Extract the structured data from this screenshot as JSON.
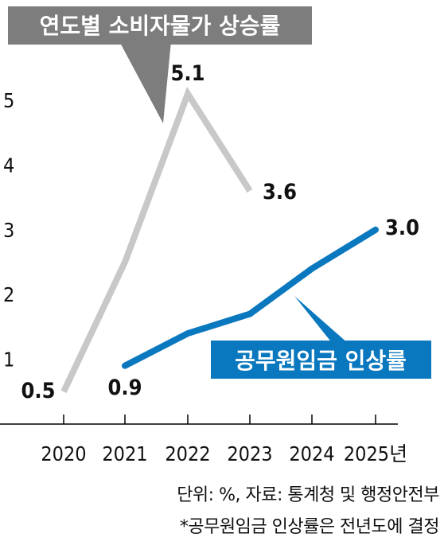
{
  "chart_data": {
    "type": "line",
    "title": "연도별 소비자물가 상승률",
    "xlabel": "",
    "ylabel": "",
    "x": [
      "2020",
      "2021",
      "2022",
      "2023",
      "2024",
      "2025년"
    ],
    "y_ticks": [
      "1",
      "2",
      "3",
      "4",
      "5"
    ],
    "ylim": [
      0,
      5.6
    ],
    "grid": false,
    "series": [
      {
        "name": "연도별 소비자물가 상승률",
        "color": "#c8c8c8",
        "values": [
          0.5,
          2.5,
          5.1,
          3.6,
          null,
          null
        ],
        "labels": [
          "0.5",
          "",
          "5.1",
          "3.6",
          "",
          ""
        ]
      },
      {
        "name": "공무원임금 인상률",
        "color": "#0a78be",
        "values": [
          null,
          0.9,
          1.4,
          1.7,
          2.4,
          3.0
        ],
        "labels": [
          "",
          "0.9",
          "",
          "",
          "",
          "3.0"
        ]
      }
    ]
  },
  "footer": {
    "source": "단위: %, 자료: 통계청 및 행정안전부",
    "note": "*공무원임금 인상률은 전년도에 결정"
  }
}
